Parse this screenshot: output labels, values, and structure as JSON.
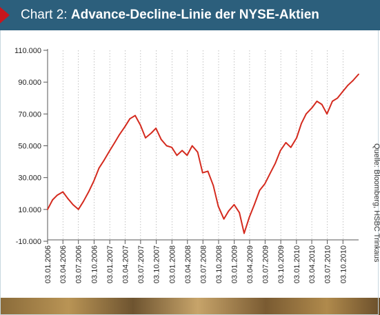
{
  "header": {
    "prefix": "Chart 2: ",
    "title": "Advance-Decline-Linie der NYSE-Aktien"
  },
  "source": "Quelle: Bloomberg, HSBC Trinkaus",
  "colors": {
    "header_bg": "#2c5f7c",
    "marker": "#c8161d",
    "line": "#d42a1e",
    "grid": "#999999"
  },
  "chart_data": {
    "type": "line",
    "title": "Advance-Decline-Linie der NYSE-Aktien",
    "xlabel": "",
    "ylabel": "",
    "ylim": [
      -10000,
      110000
    ],
    "yticks": [
      {
        "value": 110000,
        "label": "110.000"
      },
      {
        "value": 90000,
        "label": "90.000"
      },
      {
        "value": 70000,
        "label": "70.000"
      },
      {
        "value": 50000,
        "label": "50.000"
      },
      {
        "value": 30000,
        "label": "30.000"
      },
      {
        "value": 10000,
        "label": "10.000"
      },
      {
        "value": -10000,
        "label": "-10.000"
      }
    ],
    "xticks": [
      "03.01.2006",
      "03.04.2006",
      "03.07.2006",
      "03.10.2006",
      "03.01.2007",
      "03.04.2007",
      "03.07.2007",
      "03.10.2007",
      "03.01.2008",
      "03.04.2008",
      "03.07.2008",
      "03.10.2008",
      "03.01.2009",
      "03.04.2009",
      "03.07.2009",
      "03.10.2009",
      "03.01.2010",
      "03.04.2010",
      "03.07.2010",
      "03.10.2010"
    ],
    "xlim": [
      "2006-01-03",
      "2011-01-03"
    ],
    "grid": "vertical dashed",
    "x": [
      "2006-01-03",
      "2006-02-01",
      "2006-03-01",
      "2006-04-03",
      "2006-05-01",
      "2006-06-01",
      "2006-07-03",
      "2006-08-01",
      "2006-09-01",
      "2006-10-02",
      "2006-11-01",
      "2006-12-01",
      "2007-01-03",
      "2007-02-01",
      "2007-03-01",
      "2007-04-02",
      "2007-05-01",
      "2007-06-01",
      "2007-07-02",
      "2007-08-01",
      "2007-09-04",
      "2007-10-01",
      "2007-11-01",
      "2007-12-03",
      "2008-01-02",
      "2008-02-01",
      "2008-03-03",
      "2008-04-01",
      "2008-05-01",
      "2008-06-02",
      "2008-07-01",
      "2008-08-01",
      "2008-09-02",
      "2008-10-01",
      "2008-11-03",
      "2008-12-01",
      "2009-01-02",
      "2009-02-02",
      "2009-03-02",
      "2009-04-01",
      "2009-05-01",
      "2009-06-01",
      "2009-07-01",
      "2009-08-03",
      "2009-09-01",
      "2009-10-01",
      "2009-11-02",
      "2009-12-01",
      "2010-01-04",
      "2010-02-01",
      "2010-03-01",
      "2010-04-05",
      "2010-05-03",
      "2010-06-01",
      "2010-07-01",
      "2010-08-02",
      "2010-09-01",
      "2010-10-01",
      "2010-11-01",
      "2010-12-01",
      "2011-01-03"
    ],
    "values": [
      10000,
      16000,
      19000,
      21000,
      17000,
      13000,
      10000,
      15000,
      21000,
      28000,
      36000,
      41000,
      47000,
      52000,
      57000,
      62000,
      67000,
      69000,
      63000,
      55000,
      58000,
      61000,
      54000,
      50000,
      49000,
      44000,
      47000,
      44000,
      50000,
      46000,
      33000,
      34000,
      25000,
      12000,
      4000,
      9000,
      13000,
      8000,
      -5000,
      5000,
      13000,
      22000,
      26000,
      33000,
      39000,
      47000,
      52000,
      49000,
      55000,
      64000,
      70000,
      74000,
      78000,
      76000,
      70000,
      78000,
      80000,
      84000,
      88000,
      91000,
      95000
    ]
  }
}
